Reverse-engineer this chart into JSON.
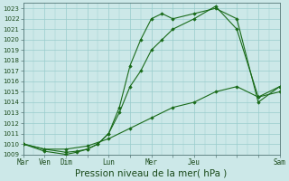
{
  "background_color": "#cce8e8",
  "grid_color": "#99cccc",
  "line_color": "#1a6b1a",
  "marker_color": "#1a6b1a",
  "xlabel": "Pression niveau de la mer( hPa )",
  "xlabel_fontsize": 7.5,
  "ylim": [
    1009,
    1023.5
  ],
  "yticks": [
    1009,
    1010,
    1011,
    1012,
    1013,
    1014,
    1015,
    1016,
    1017,
    1018,
    1019,
    1020,
    1021,
    1022,
    1023
  ],
  "x_label_map": {
    "0": "Mar",
    "1": "Ven",
    "2": "Dim",
    "4": "Lun",
    "6": "Mer",
    "8": "Jeu",
    "12": "Sam"
  },
  "series1_x": [
    0,
    1,
    2,
    2.5,
    3,
    3.5,
    4,
    4.5,
    5,
    5.5,
    6,
    6.5,
    7,
    8,
    9,
    10,
    11,
    12
  ],
  "series1_y": [
    1010.0,
    1009.3,
    1009.0,
    1009.2,
    1009.5,
    1010.0,
    1011.0,
    1013.5,
    1017.5,
    1020.0,
    1022.0,
    1022.5,
    1022.0,
    1022.5,
    1023.0,
    1022.0,
    1014.0,
    1015.5
  ],
  "series2_x": [
    0,
    1,
    2,
    2.5,
    3,
    3.5,
    4,
    4.5,
    5,
    5.5,
    6,
    6.5,
    7,
    8,
    9,
    10,
    11,
    12
  ],
  "series2_y": [
    1010.0,
    1009.5,
    1009.2,
    1009.3,
    1009.5,
    1010.0,
    1011.0,
    1013.0,
    1015.5,
    1017.0,
    1019.0,
    1020.0,
    1021.0,
    1022.0,
    1023.2,
    1021.0,
    1014.5,
    1015.0
  ],
  "series3_x": [
    0,
    1,
    2,
    3,
    4,
    5,
    6,
    7,
    8,
    9,
    10,
    11,
    12
  ],
  "series3_y": [
    1010.0,
    1009.5,
    1009.5,
    1009.8,
    1010.5,
    1011.5,
    1012.5,
    1013.5,
    1014.0,
    1015.0,
    1015.5,
    1014.5,
    1015.5
  ]
}
